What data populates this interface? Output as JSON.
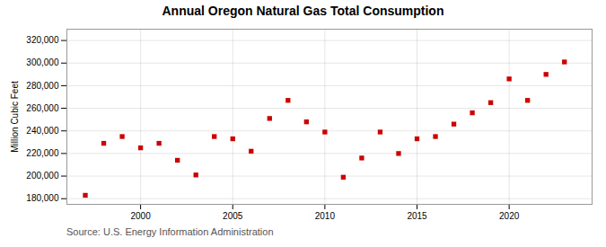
{
  "chart_data": {
    "type": "scatter",
    "title": "Annual Oregon Natural Gas Total Consumption",
    "ylabel": "Million Cubic Feet",
    "source": "Source: U.S. Energy Information Administration",
    "x": [
      1997,
      1998,
      1999,
      2000,
      2001,
      2002,
      2003,
      2004,
      2005,
      2006,
      2007,
      2008,
      2009,
      2010,
      2011,
      2012,
      2013,
      2014,
      2015,
      2016,
      2017,
      2018,
      2019,
      2020,
      2021,
      2022,
      2023
    ],
    "values": [
      183000,
      229000,
      235000,
      225000,
      229000,
      214000,
      201000,
      235000,
      233000,
      222000,
      251000,
      267000,
      248000,
      239000,
      199000,
      216000,
      239000,
      220000,
      233000,
      235000,
      246000,
      256000,
      265000,
      286000,
      267000,
      290000,
      301000
    ],
    "color": "#cc0000",
    "marker": "square",
    "xlim": [
      1996.0,
      2024.5
    ],
    "xticks": [
      2000,
      2005,
      2010,
      2015,
      2020
    ],
    "ylim": [
      175000,
      330000
    ],
    "yticks": [
      {
        "value": 180000,
        "label": "180,000"
      },
      {
        "value": 200000,
        "label": "200,000"
      },
      {
        "value": 220000,
        "label": "220,000"
      },
      {
        "value": 240000,
        "label": "240,000"
      },
      {
        "value": 260000,
        "label": "260,000"
      },
      {
        "value": 280000,
        "label": "280,000"
      },
      {
        "value": 300000,
        "label": "300,000"
      },
      {
        "value": 320000,
        "label": "320,000"
      }
    ],
    "grid": true
  }
}
